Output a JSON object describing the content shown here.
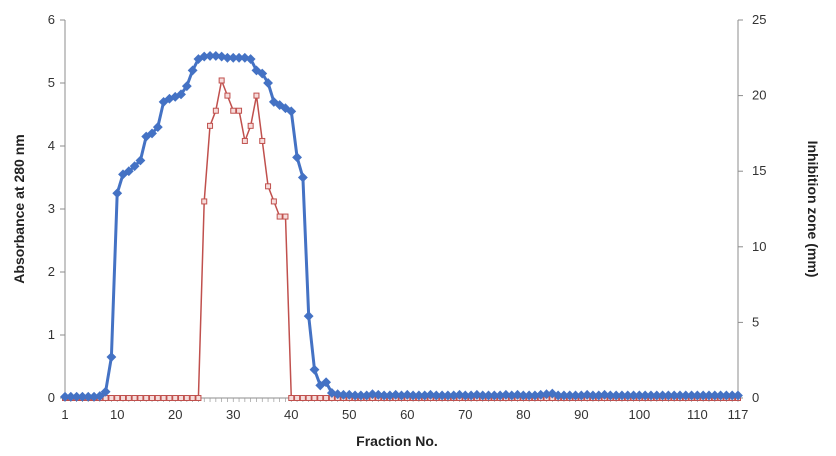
{
  "chart_data": {
    "type": "line",
    "x_axis": {
      "label": "Fraction No.",
      "range": [
        1,
        117
      ],
      "tick_labels": [
        "1",
        "10",
        "20",
        "30",
        "40",
        "50",
        "60",
        "70",
        "80",
        "90",
        "100",
        "110",
        "117"
      ]
    },
    "y_axis_left": {
      "label": "Absorbance at 280 nm",
      "range": [
        0,
        6
      ],
      "ticks": [
        0,
        1,
        2,
        3,
        4,
        5,
        6
      ]
    },
    "y_axis_right": {
      "label": "Inhibition zone (mm)",
      "range": [
        0,
        25
      ],
      "ticks": [
        0,
        5,
        10,
        15,
        20,
        25
      ]
    },
    "grid": false,
    "legend": "none",
    "series": [
      {
        "axis": "left",
        "color": "#4472c4",
        "marker": "diamond",
        "points": [
          [
            1,
            0.02
          ],
          [
            2,
            0.02
          ],
          [
            3,
            0.02
          ],
          [
            4,
            0.02
          ],
          [
            5,
            0.02
          ],
          [
            6,
            0.02
          ],
          [
            7,
            0.03
          ],
          [
            8,
            0.1
          ],
          [
            9,
            0.65
          ],
          [
            10,
            3.25
          ],
          [
            11,
            3.55
          ],
          [
            12,
            3.6
          ],
          [
            13,
            3.68
          ],
          [
            14,
            3.77
          ],
          [
            15,
            4.15
          ],
          [
            16,
            4.2
          ],
          [
            17,
            4.3
          ],
          [
            18,
            4.7
          ],
          [
            19,
            4.75
          ],
          [
            20,
            4.78
          ],
          [
            21,
            4.82
          ],
          [
            22,
            4.95
          ],
          [
            23,
            5.2
          ],
          [
            24,
            5.38
          ],
          [
            25,
            5.42
          ],
          [
            26,
            5.43
          ],
          [
            27,
            5.43
          ],
          [
            28,
            5.42
          ],
          [
            29,
            5.4
          ],
          [
            30,
            5.4
          ],
          [
            31,
            5.4
          ],
          [
            32,
            5.4
          ],
          [
            33,
            5.38
          ],
          [
            34,
            5.2
          ],
          [
            35,
            5.15
          ],
          [
            36,
            5.0
          ],
          [
            37,
            4.7
          ],
          [
            38,
            4.65
          ],
          [
            39,
            4.6
          ],
          [
            40,
            4.55
          ],
          [
            41,
            3.82
          ],
          [
            42,
            3.5
          ],
          [
            43,
            1.3
          ],
          [
            44,
            0.45
          ],
          [
            45,
            0.2
          ],
          [
            46,
            0.25
          ],
          [
            47,
            0.08
          ],
          [
            48,
            0.06
          ],
          [
            49,
            0.05
          ],
          [
            50,
            0.05
          ],
          [
            51,
            0.04
          ],
          [
            52,
            0.04
          ],
          [
            53,
            0.04
          ],
          [
            54,
            0.06
          ],
          [
            55,
            0.05
          ],
          [
            56,
            0.04
          ],
          [
            57,
            0.04
          ],
          [
            58,
            0.05
          ],
          [
            59,
            0.04
          ],
          [
            60,
            0.05
          ],
          [
            61,
            0.04
          ],
          [
            62,
            0.04
          ],
          [
            63,
            0.04
          ],
          [
            64,
            0.05
          ],
          [
            65,
            0.04
          ],
          [
            66,
            0.04
          ],
          [
            67,
            0.04
          ],
          [
            68,
            0.04
          ],
          [
            69,
            0.05
          ],
          [
            70,
            0.04
          ],
          [
            71,
            0.04
          ],
          [
            72,
            0.05
          ],
          [
            73,
            0.04
          ],
          [
            74,
            0.04
          ],
          [
            75,
            0.04
          ],
          [
            76,
            0.04
          ],
          [
            77,
            0.05
          ],
          [
            78,
            0.04
          ],
          [
            79,
            0.05
          ],
          [
            80,
            0.04
          ],
          [
            81,
            0.04
          ],
          [
            82,
            0.04
          ],
          [
            83,
            0.05
          ],
          [
            84,
            0.06
          ],
          [
            85,
            0.07
          ],
          [
            86,
            0.04
          ],
          [
            87,
            0.04
          ],
          [
            88,
            0.04
          ],
          [
            89,
            0.04
          ],
          [
            90,
            0.04
          ],
          [
            91,
            0.05
          ],
          [
            92,
            0.04
          ],
          [
            93,
            0.04
          ],
          [
            94,
            0.05
          ],
          [
            95,
            0.04
          ],
          [
            96,
            0.04
          ],
          [
            97,
            0.04
          ],
          [
            98,
            0.04
          ],
          [
            99,
            0.04
          ],
          [
            100,
            0.04
          ],
          [
            101,
            0.04
          ],
          [
            102,
            0.04
          ],
          [
            103,
            0.04
          ],
          [
            104,
            0.04
          ],
          [
            105,
            0.04
          ],
          [
            106,
            0.04
          ],
          [
            107,
            0.04
          ],
          [
            108,
            0.04
          ],
          [
            109,
            0.04
          ],
          [
            110,
            0.04
          ],
          [
            111,
            0.04
          ],
          [
            112,
            0.04
          ],
          [
            113,
            0.04
          ],
          [
            114,
            0.04
          ],
          [
            115,
            0.04
          ],
          [
            116,
            0.04
          ],
          [
            117,
            0.04
          ]
        ]
      },
      {
        "axis": "right",
        "color": "#c0504d",
        "marker": "square",
        "points": [
          [
            1,
            0
          ],
          [
            2,
            0
          ],
          [
            3,
            0
          ],
          [
            4,
            0
          ],
          [
            5,
            0
          ],
          [
            6,
            0
          ],
          [
            7,
            0
          ],
          [
            8,
            0
          ],
          [
            9,
            0
          ],
          [
            10,
            0
          ],
          [
            11,
            0
          ],
          [
            12,
            0
          ],
          [
            13,
            0
          ],
          [
            14,
            0
          ],
          [
            15,
            0
          ],
          [
            16,
            0
          ],
          [
            17,
            0
          ],
          [
            18,
            0
          ],
          [
            19,
            0
          ],
          [
            20,
            0
          ],
          [
            21,
            0
          ],
          [
            22,
            0
          ],
          [
            23,
            0
          ],
          [
            24,
            0
          ],
          [
            25,
            13
          ],
          [
            26,
            18
          ],
          [
            27,
            19
          ],
          [
            28,
            21
          ],
          [
            29,
            20
          ],
          [
            30,
            19
          ],
          [
            31,
            19
          ],
          [
            32,
            17
          ],
          [
            33,
            18
          ],
          [
            34,
            20
          ],
          [
            35,
            17
          ],
          [
            36,
            14
          ],
          [
            37,
            13
          ],
          [
            38,
            12
          ],
          [
            39,
            12
          ],
          [
            40,
            0
          ],
          [
            41,
            0
          ],
          [
            42,
            0
          ],
          [
            43,
            0
          ],
          [
            44,
            0
          ],
          [
            45,
            0
          ],
          [
            46,
            0
          ],
          [
            47,
            0
          ],
          [
            48,
            0
          ],
          [
            49,
            0
          ],
          [
            50,
            0
          ],
          [
            51,
            0
          ],
          [
            52,
            0
          ],
          [
            53,
            0
          ],
          [
            54,
            0
          ],
          [
            55,
            0
          ],
          [
            56,
            0
          ],
          [
            57,
            0
          ],
          [
            58,
            0
          ],
          [
            59,
            0
          ],
          [
            60,
            0
          ],
          [
            61,
            0
          ],
          [
            62,
            0
          ],
          [
            63,
            0
          ],
          [
            64,
            0
          ],
          [
            65,
            0
          ],
          [
            66,
            0
          ],
          [
            67,
            0
          ],
          [
            68,
            0
          ],
          [
            69,
            0
          ],
          [
            70,
            0
          ],
          [
            71,
            0
          ],
          [
            72,
            0
          ],
          [
            73,
            0
          ],
          [
            74,
            0
          ],
          [
            75,
            0
          ],
          [
            76,
            0
          ],
          [
            77,
            0
          ],
          [
            78,
            0
          ],
          [
            79,
            0
          ],
          [
            80,
            0
          ],
          [
            81,
            0
          ],
          [
            82,
            0
          ],
          [
            83,
            0
          ],
          [
            84,
            0
          ],
          [
            85,
            0
          ],
          [
            86,
            0
          ],
          [
            87,
            0
          ],
          [
            88,
            0
          ],
          [
            89,
            0
          ],
          [
            90,
            0
          ],
          [
            91,
            0
          ],
          [
            92,
            0
          ],
          [
            93,
            0
          ],
          [
            94,
            0
          ],
          [
            95,
            0
          ],
          [
            96,
            0
          ],
          [
            97,
            0
          ],
          [
            98,
            0
          ],
          [
            99,
            0
          ],
          [
            100,
            0
          ],
          [
            101,
            0
          ],
          [
            102,
            0
          ],
          [
            103,
            0
          ],
          [
            104,
            0
          ],
          [
            105,
            0
          ],
          [
            106,
            0
          ],
          [
            107,
            0
          ],
          [
            108,
            0
          ],
          [
            109,
            0
          ],
          [
            110,
            0
          ],
          [
            111,
            0
          ],
          [
            112,
            0
          ],
          [
            113,
            0
          ],
          [
            114,
            0
          ],
          [
            115,
            0
          ],
          [
            116,
            0
          ],
          [
            117,
            0
          ]
        ]
      }
    ]
  }
}
